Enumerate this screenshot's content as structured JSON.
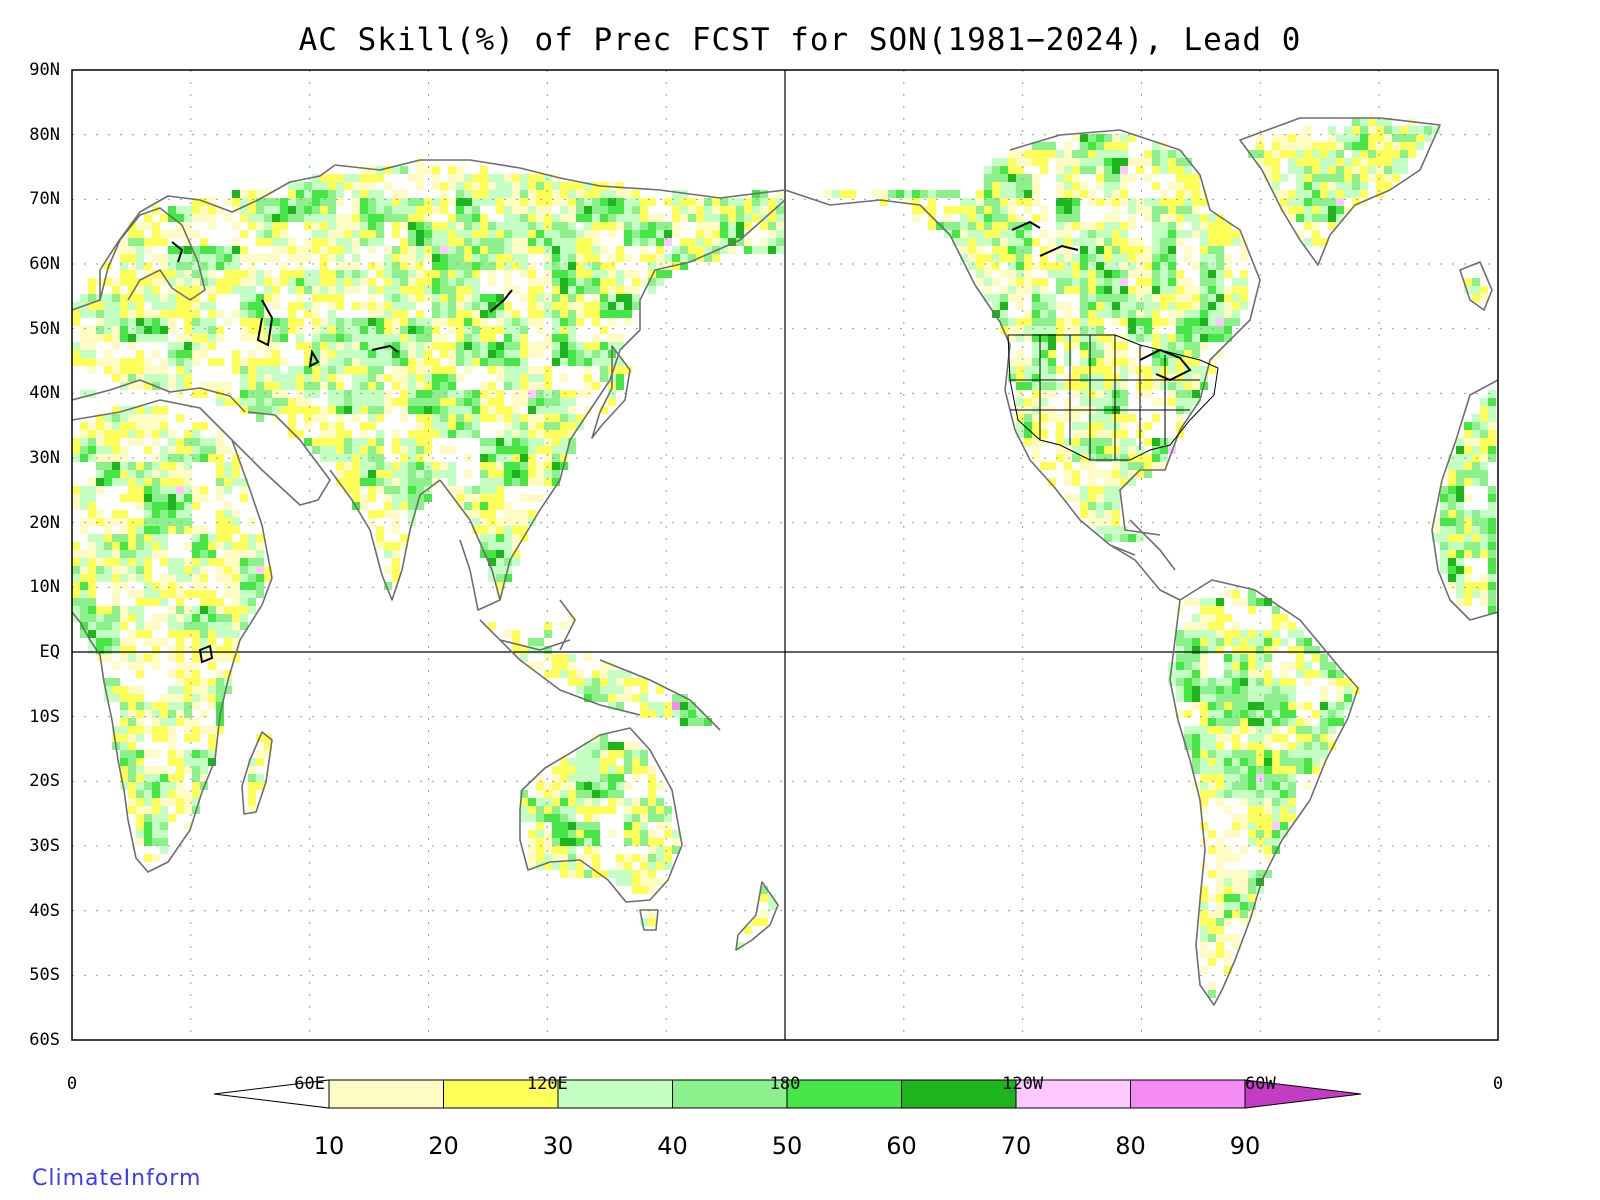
{
  "title": "AC Skill(%) of Prec FCST for SON(1981−2024), Lead 0",
  "lat_ticks": [
    {
      "value": 90,
      "label": "90N"
    },
    {
      "value": 80,
      "label": "80N"
    },
    {
      "value": 70,
      "label": "70N"
    },
    {
      "value": 60,
      "label": "60N"
    },
    {
      "value": 50,
      "label": "50N"
    },
    {
      "value": 40,
      "label": "40N"
    },
    {
      "value": 30,
      "label": "30N"
    },
    {
      "value": 20,
      "label": "20N"
    },
    {
      "value": 10,
      "label": "10N"
    },
    {
      "value": 0,
      "label": "EQ"
    },
    {
      "value": -10,
      "label": "10S"
    },
    {
      "value": -20,
      "label": "20S"
    },
    {
      "value": -30,
      "label": "30S"
    },
    {
      "value": -40,
      "label": "40S"
    },
    {
      "value": -50,
      "label": "50S"
    },
    {
      "value": -60,
      "label": "60S"
    }
  ],
  "lon_ticks": [
    {
      "value": 0,
      "label": "0"
    },
    {
      "value": 60,
      "label": "60E"
    },
    {
      "value": 120,
      "label": "120E"
    },
    {
      "value": 180,
      "label": "180"
    },
    {
      "value": 240,
      "label": "120W"
    },
    {
      "value": 300,
      "label": "60W"
    },
    {
      "value": 360,
      "label": "0"
    }
  ],
  "colorbar": {
    "ticks": [
      "10",
      "20",
      "30",
      "40",
      "50",
      "60",
      "70",
      "80",
      "90"
    ],
    "colors": [
      "#ffffff",
      "#fffbc4",
      "#ffff5a",
      "#c4ffc4",
      "#8cf08c",
      "#46e646",
      "#1eb41e",
      "#ffc8ff",
      "#f58cf5",
      "#c43cc4"
    ]
  },
  "credit": "ClimateInform",
  "map": {
    "extent": {
      "lon": [
        0,
        360
      ],
      "lat": [
        -60,
        90
      ]
    },
    "grid": "dotted",
    "highlight_lines": [
      "equator",
      "180"
    ],
    "palette": {
      "coast": "#6e6e6e",
      "lakes": "#000000"
    }
  }
}
